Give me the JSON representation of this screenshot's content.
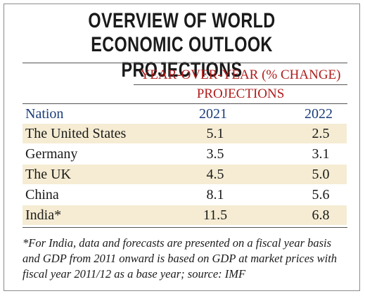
{
  "title_line1": "OVERVIEW OF WORLD",
  "title_line2": "ECONOMIC OUTLOOK PROJECTIONS",
  "header_group": "YEAR-OVER-YEAR (% CHANGE)",
  "header_sub": "PROJECTIONS",
  "columns": [
    "Nation",
    "2021",
    "2022"
  ],
  "footnote": "*For India, data and forecasts are presented on a fiscal year basis and GDP from 2011 onward is based on GDP at market prices with fiscal year 2011/12 as a base year; source: IMF",
  "colors": {
    "header_red": "#b01c1c",
    "column_blue": "#1a3d7a",
    "shade": "#f5ecd3"
  },
  "chart_data": {
    "type": "table",
    "title": "OVERVIEW OF WORLD ECONOMIC OUTLOOK PROJECTIONS",
    "columns": [
      "Nation",
      "2021",
      "2022"
    ],
    "rows": [
      {
        "nation": "The United States",
        "y2021": "5.1",
        "y2022": "2.5"
      },
      {
        "nation": "Germany",
        "y2021": "3.5",
        "y2022": "3.1"
      },
      {
        "nation": "The UK",
        "y2021": "4.5",
        "y2022": "5.0"
      },
      {
        "nation": "China",
        "y2021": "8.1",
        "y2022": "5.6"
      },
      {
        "nation": "India*",
        "y2021": "11.5",
        "y2022": "6.8"
      }
    ]
  }
}
